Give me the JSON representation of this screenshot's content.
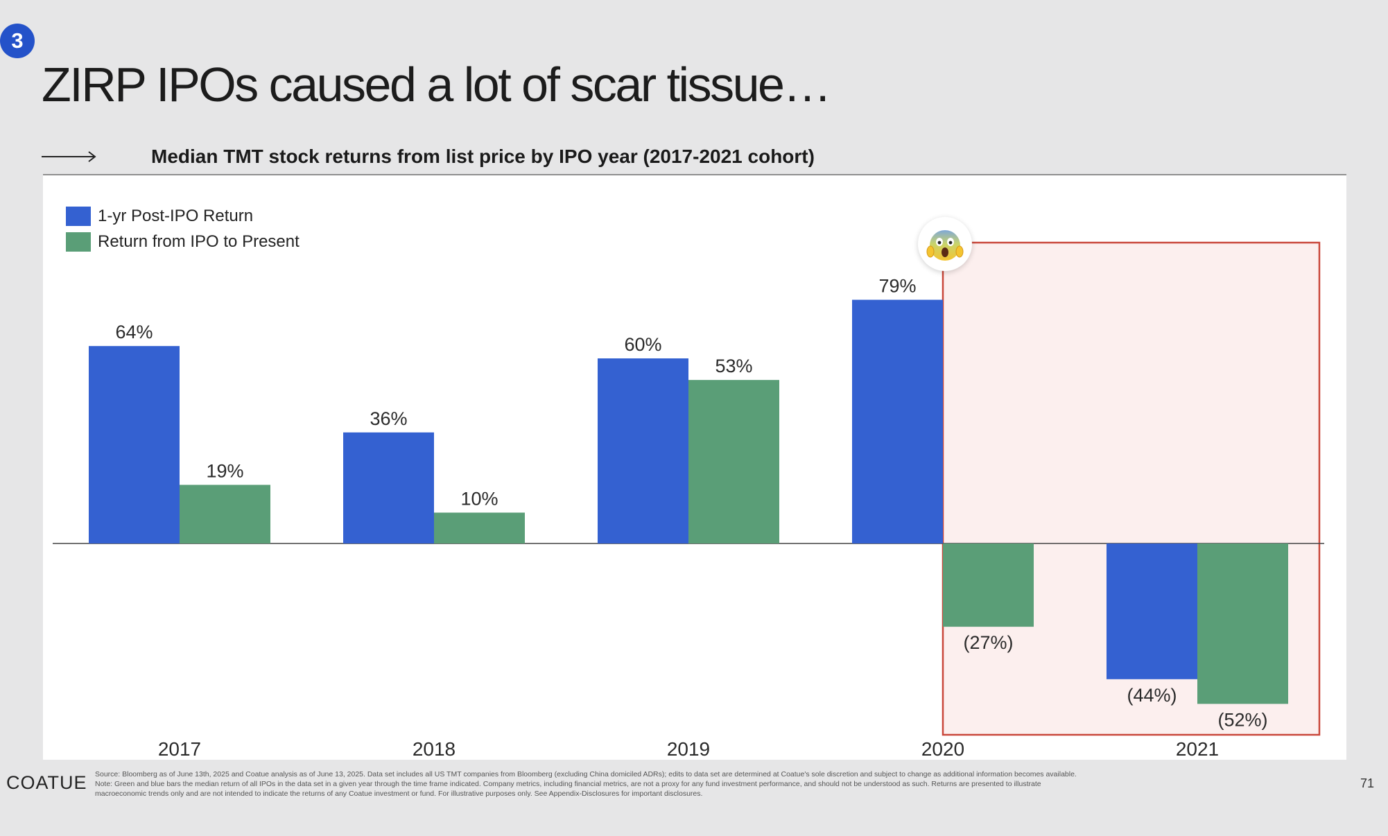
{
  "slide": {
    "number": "3",
    "title": "ZIRP IPOs caused a lot of scar tissue…",
    "subtitle": "Median TMT stock returns from list price by IPO year (2017-2021 cohort)",
    "emoji": "😱",
    "emoji_icon": "face-screaming-in-fear-icon",
    "logo": "COATUE",
    "page_number": "71",
    "footnote": [
      "Source: Bloomberg as of June 13th, 2025 and Coatue analysis as of June 13, 2025. Data set includes all US TMT companies from Bloomberg (excluding China domiciled ADRs); edits to data set are determined at Coatue's sole discretion and subject to change as additional information becomes available.",
      "Note: Green and blue bars the median return of all IPOs in the data set in a given year through the time frame indicated. Company metrics, including financial metrics, are not a proxy for any fund investment performance, and should not be understood as such. Returns are presented to illustrate",
      "macroeconomic trends only and are not intended to indicate the returns of any Coatue investment or fund. For illustrative purposes only. See Appendix-Disclosures for important disclosures."
    ]
  },
  "chart_data": {
    "type": "bar",
    "categories": [
      "2017",
      "2018",
      "2019",
      "2020",
      "2021"
    ],
    "series": [
      {
        "name": "1-yr Post-IPO Return",
        "color": "#3461d1",
        "values": [
          64,
          36,
          60,
          79,
          -44
        ],
        "labels": [
          "64%",
          "36%",
          "60%",
          "79%",
          "(44%)"
        ]
      },
      {
        "name": "Return from IPO to Present",
        "color": "#5a9e77",
        "values": [
          19,
          10,
          53,
          -27,
          -52
        ],
        "labels": [
          "19%",
          "10%",
          "53%",
          "(27%)",
          "(52%)"
        ]
      }
    ],
    "ylim": [
      -62,
      92
    ],
    "grid": false,
    "legend": "top-left",
    "highlight": {
      "description": "2020-2021 outlined region",
      "fill": "#fcefee",
      "stroke": "#c9473a"
    }
  }
}
